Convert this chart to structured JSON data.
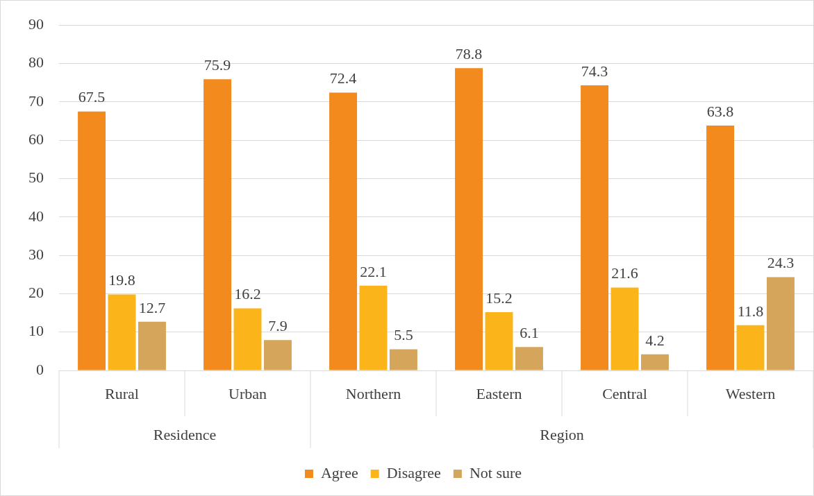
{
  "chart_data": {
    "type": "bar",
    "categories": [
      "Rural",
      "Urban",
      "Northern",
      "Eastern",
      "Central",
      "Western"
    ],
    "series": [
      {
        "name": "Agree",
        "color": "#f28a1e",
        "values": [
          67.5,
          75.9,
          72.4,
          78.8,
          74.3,
          63.8
        ]
      },
      {
        "name": "Disagree",
        "color": "#fbb41a",
        "values": [
          19.8,
          16.2,
          22.1,
          15.2,
          21.6,
          11.8
        ]
      },
      {
        "name": "Not sure",
        "color": "#d4a55a",
        "values": [
          12.7,
          7.9,
          5.5,
          6.1,
          4.2,
          24.3
        ]
      }
    ],
    "ylim": [
      0,
      90
    ],
    "yticks": [
      0,
      10,
      20,
      30,
      40,
      50,
      60,
      70,
      80,
      90
    ],
    "grid": "y",
    "legend": "bottom",
    "data_labels": true,
    "annotations": [
      "Residence",
      "Region"
    ]
  }
}
